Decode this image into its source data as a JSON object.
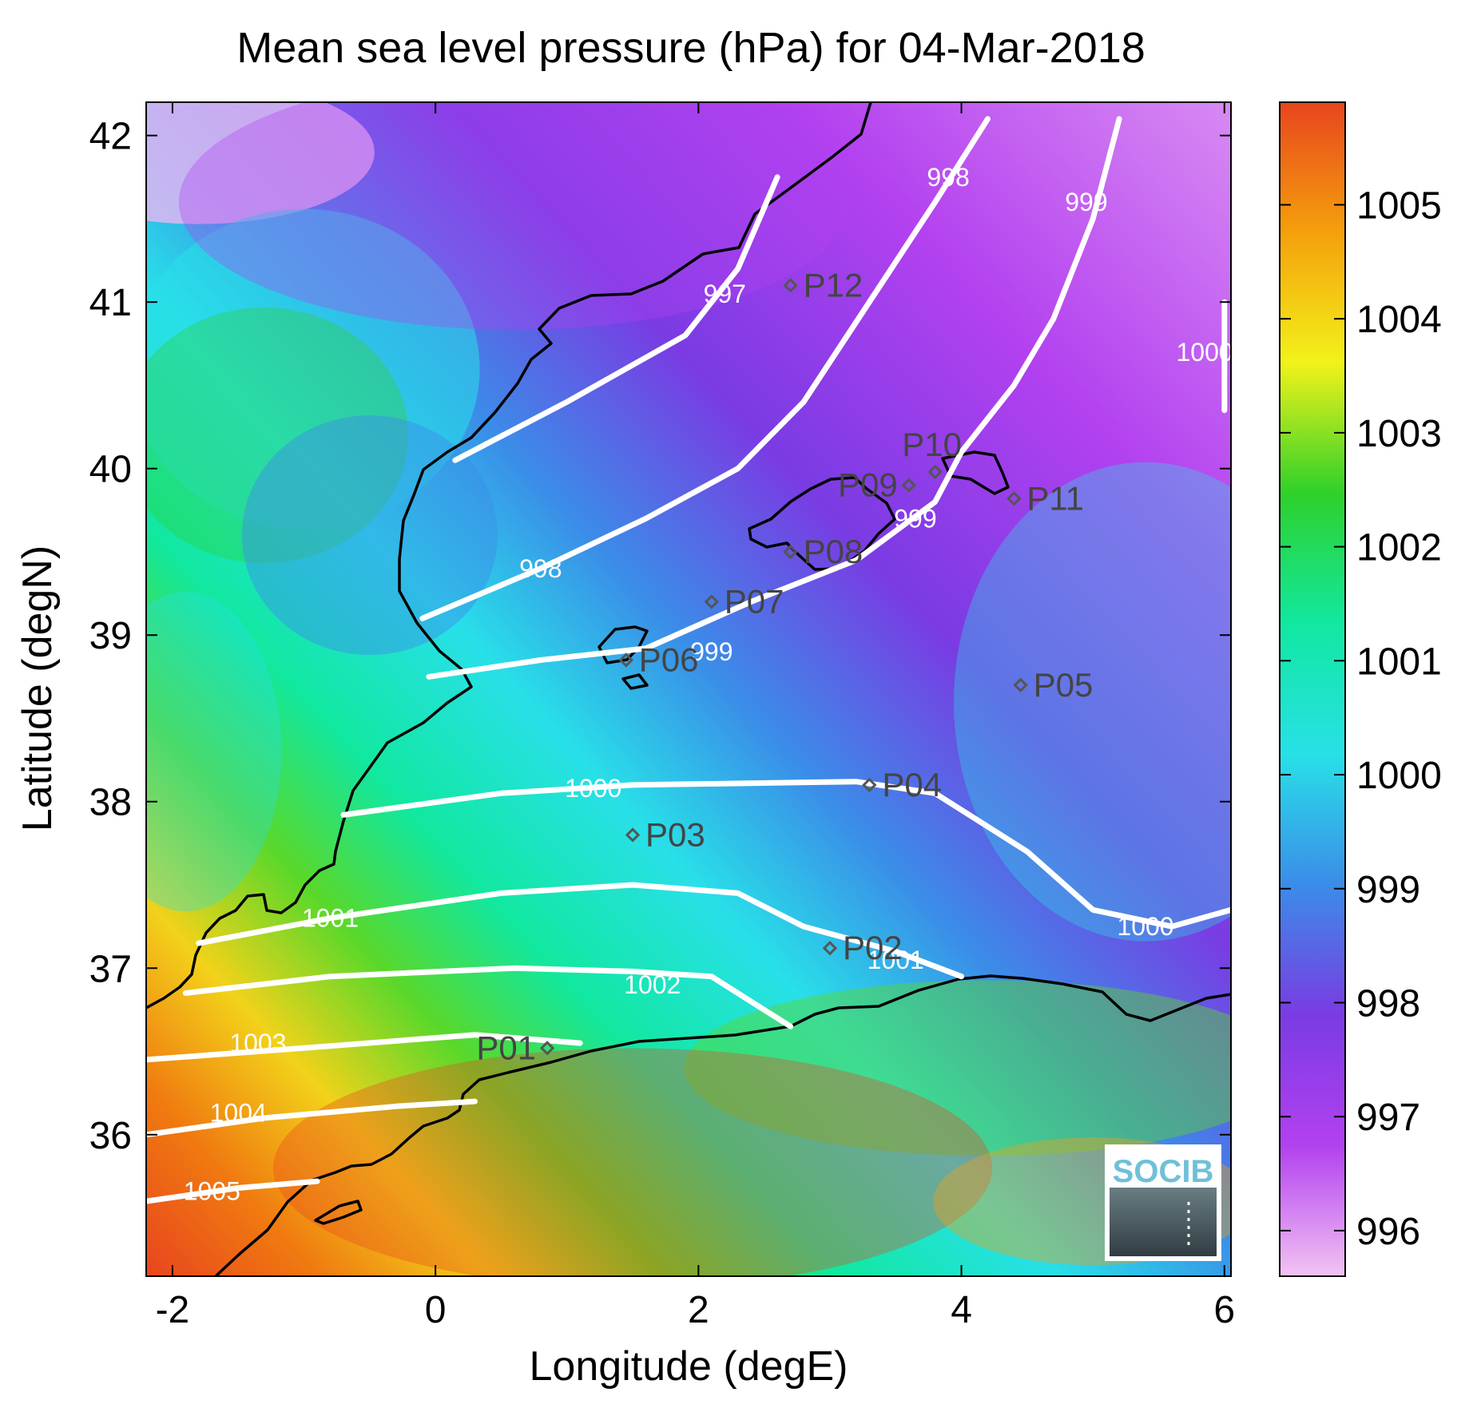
{
  "title": "Mean sea level pressure (hPa) for 04-Mar-2018",
  "xlabel": "Longitude (degE)",
  "ylabel": "Latitude (degN)",
  "xticks": [
    {
      "value": -2,
      "label": "-2"
    },
    {
      "value": 0,
      "label": "0"
    },
    {
      "value": 2,
      "label": "2"
    },
    {
      "value": 4,
      "label": "4"
    },
    {
      "value": 6,
      "label": "6"
    }
  ],
  "yticks": [
    {
      "value": 36,
      "label": "36"
    },
    {
      "value": 37,
      "label": "37"
    },
    {
      "value": 38,
      "label": "38"
    },
    {
      "value": 39,
      "label": "39"
    },
    {
      "value": 40,
      "label": "40"
    },
    {
      "value": 41,
      "label": "41"
    },
    {
      "value": 42,
      "label": "42"
    }
  ],
  "xlim": [
    -2.2,
    6.05
  ],
  "ylim": [
    35.15,
    42.2
  ],
  "colorbar": {
    "range": [
      995.6,
      1005.9
    ],
    "ticks": [
      {
        "value": 996,
        "label": "996"
      },
      {
        "value": 997,
        "label": "997"
      },
      {
        "value": 998,
        "label": "998"
      },
      {
        "value": 999,
        "label": "999"
      },
      {
        "value": 1000,
        "label": "1000"
      },
      {
        "value": 1001,
        "label": "1001"
      },
      {
        "value": 1002,
        "label": "1002"
      },
      {
        "value": 1003,
        "label": "1003"
      },
      {
        "value": 1004,
        "label": "1004"
      },
      {
        "value": 1005,
        "label": "1005"
      }
    ],
    "colormap": [
      "#f3c3f3",
      "#b341f0",
      "#7a3be3",
      "#3b8ce8",
      "#28e0e8",
      "#11e8a0",
      "#2ed12a",
      "#f2f21a",
      "#f5a00c",
      "#e8451e"
    ]
  },
  "chart_data": {
    "type": "heatmap",
    "title": "Mean sea level pressure (hPa) for 04-Mar-2018",
    "xlabel": "Longitude (degE)",
    "ylabel": "Latitude (degN)",
    "xlim": [
      -2.2,
      6.05
    ],
    "ylim": [
      35.15,
      42.2
    ],
    "contours": [
      {
        "level": 997,
        "label": "997",
        "points": [
          [
            0.15,
            40.05
          ],
          [
            1.0,
            40.4
          ],
          [
            1.9,
            40.8
          ],
          [
            2.3,
            41.2
          ],
          [
            2.6,
            41.75
          ]
        ],
        "label_at": [
          2.2,
          41.05
        ]
      },
      {
        "level": 998,
        "label": "998",
        "points": [
          [
            -0.1,
            39.1
          ],
          [
            0.8,
            39.4
          ],
          [
            1.6,
            39.7
          ],
          [
            2.3,
            40.0
          ],
          [
            2.8,
            40.4
          ],
          [
            3.3,
            41.0
          ],
          [
            3.8,
            41.6
          ],
          [
            4.2,
            42.1
          ]
        ],
        "label_at": [
          0.8,
          39.4
        ]
      },
      {
        "level": 998,
        "label": "998",
        "points": [],
        "label_at": [
          3.9,
          41.75
        ]
      },
      {
        "level": 999,
        "label": "999",
        "points": [
          [
            -0.05,
            38.75
          ],
          [
            0.8,
            38.85
          ],
          [
            1.6,
            38.92
          ],
          [
            2.4,
            39.2
          ],
          [
            3.2,
            39.45
          ],
          [
            3.8,
            39.8
          ],
          [
            4.0,
            40.1
          ],
          [
            4.4,
            40.5
          ],
          [
            4.7,
            40.9
          ],
          [
            5.0,
            41.5
          ],
          [
            5.2,
            42.1
          ]
        ],
        "label_at": [
          2.1,
          38.9
        ]
      },
      {
        "level": 999,
        "label": "999",
        "points": [],
        "label_at": [
          3.65,
          39.7
        ]
      },
      {
        "level": 999,
        "label": "999",
        "points": [],
        "label_at": [
          4.95,
          41.6
        ]
      },
      {
        "level": 1000,
        "label": "1000",
        "points": [
          [
            -0.7,
            37.92
          ],
          [
            0.5,
            38.05
          ],
          [
            1.5,
            38.1
          ],
          [
            3.2,
            38.12
          ],
          [
            3.8,
            38.05
          ],
          [
            4.5,
            37.7
          ],
          [
            5.0,
            37.35
          ],
          [
            5.6,
            37.25
          ],
          [
            6.05,
            37.35
          ]
        ],
        "label_at": [
          1.2,
          38.08
        ]
      },
      {
        "level": 1000,
        "label": "1000",
        "points": [],
        "label_at": [
          5.4,
          37.25
        ]
      },
      {
        "level": 1000,
        "label": "1000",
        "points": [
          [
            6.0,
            40.35
          ],
          [
            6.0,
            40.6
          ],
          [
            6.0,
            41.0
          ]
        ],
        "label_at": [
          5.85,
          40.7
        ]
      },
      {
        "level": 1001,
        "label": "1001",
        "points": [
          [
            -1.8,
            37.15
          ],
          [
            -0.8,
            37.3
          ],
          [
            0.5,
            37.45
          ],
          [
            1.5,
            37.5
          ],
          [
            2.3,
            37.45
          ],
          [
            2.8,
            37.25
          ],
          [
            3.5,
            37.1
          ],
          [
            4.0,
            36.95
          ]
        ],
        "label_at": [
          -0.8,
          37.3
        ]
      },
      {
        "level": 1001,
        "label": "1001",
        "points": [],
        "label_at": [
          3.5,
          37.05
        ]
      },
      {
        "level": 1002,
        "label": "1002",
        "points": [
          [
            -1.9,
            36.85
          ],
          [
            -0.8,
            36.95
          ],
          [
            0.6,
            37.0
          ],
          [
            1.5,
            36.98
          ],
          [
            2.1,
            36.95
          ],
          [
            2.5,
            36.75
          ],
          [
            2.7,
            36.65
          ]
        ],
        "label_at": [
          1.65,
          36.9
        ]
      },
      {
        "level": 1003,
        "label": "1003",
        "points": [
          [
            -2.2,
            36.45
          ],
          [
            -1.0,
            36.52
          ],
          [
            0.3,
            36.6
          ],
          [
            1.1,
            36.55
          ]
        ],
        "label_at": [
          -1.35,
          36.55
        ]
      },
      {
        "level": 1004,
        "label": "1004",
        "points": [
          [
            -2.2,
            36.0
          ],
          [
            -1.3,
            36.1
          ],
          [
            -0.3,
            36.17
          ],
          [
            0.3,
            36.2
          ]
        ],
        "label_at": [
          -1.5,
          36.13
        ]
      },
      {
        "level": 1005,
        "label": "1005",
        "points": [
          [
            -2.2,
            35.6
          ],
          [
            -1.5,
            35.68
          ],
          [
            -0.9,
            35.72
          ]
        ],
        "label_at": [
          -1.7,
          35.66
        ]
      }
    ],
    "stations": [
      {
        "name": "P01",
        "lon": 0.85,
        "lat": 36.52,
        "side": "left"
      },
      {
        "name": "P02",
        "lon": 3.0,
        "lat": 37.12,
        "side": "right"
      },
      {
        "name": "P03",
        "lon": 1.5,
        "lat": 37.8,
        "side": "right"
      },
      {
        "name": "P04",
        "lon": 3.3,
        "lat": 38.1,
        "side": "right"
      },
      {
        "name": "P05",
        "lon": 4.45,
        "lat": 38.7,
        "side": "right"
      },
      {
        "name": "P06",
        "lon": 1.45,
        "lat": 38.85,
        "side": "right"
      },
      {
        "name": "P07",
        "lon": 2.1,
        "lat": 39.2,
        "side": "right"
      },
      {
        "name": "P08",
        "lon": 2.7,
        "lat": 39.5,
        "side": "right"
      },
      {
        "name": "P09",
        "lon": 3.6,
        "lat": 39.9,
        "side": "left"
      },
      {
        "name": "P10",
        "lon": 3.8,
        "lat": 39.98,
        "side": "above"
      },
      {
        "name": "P11",
        "lon": 4.4,
        "lat": 39.82,
        "side": "right"
      },
      {
        "name": "P12",
        "lon": 2.7,
        "lat": 41.1,
        "side": "right"
      }
    ]
  },
  "logo": {
    "text": "SOCIB"
  }
}
